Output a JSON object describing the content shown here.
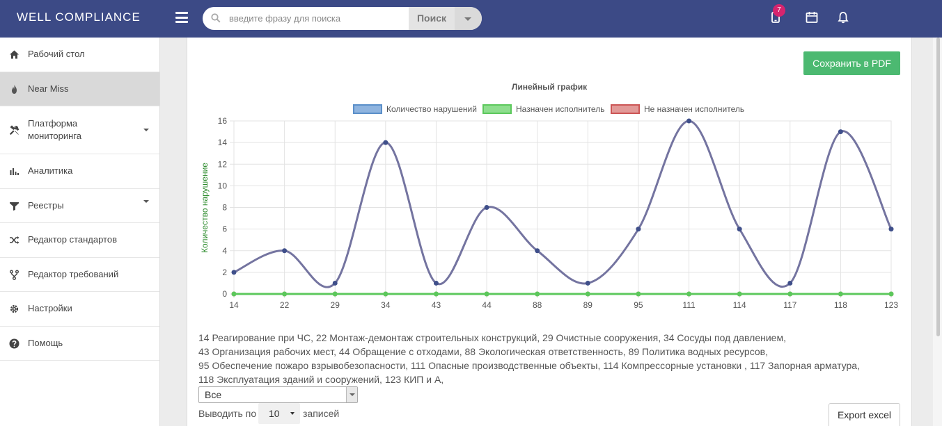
{
  "header": {
    "brand": "WELL COMPLIANCE",
    "search_placeholder": "введите фразу для поиска",
    "search_button": "Поиск",
    "notification_count": "7",
    "colors": {
      "header_bg": "#3c4a86",
      "badge": "#d6246e"
    }
  },
  "sidebar": {
    "items": [
      {
        "label": "Рабочий стол",
        "icon": "home-icon"
      },
      {
        "label": "Near Miss",
        "icon": "flame-icon",
        "active": true
      },
      {
        "label": "Платформа мониторинга",
        "icon": "tools-icon",
        "has_caret": true
      },
      {
        "label": "Аналитика",
        "icon": "bar-chart-icon"
      },
      {
        "label": "Реестры",
        "icon": "filter-icon",
        "has_caret": true
      },
      {
        "label": "Редактор стандартов",
        "icon": "shuffle-icon"
      },
      {
        "label": "Редактор требований",
        "icon": "branch-icon"
      },
      {
        "label": "Настройки",
        "icon": "gear-icon"
      },
      {
        "label": "Помощь",
        "icon": "question-icon"
      }
    ]
  },
  "main": {
    "save_pdf": "Сохранить в PDF",
    "category_list": [
      "14 Реагирование при ЧС, 22 Монтаж-демонтаж строительных конструкций, 29 Очистные сооружения, 34 Сосуды под давлением,",
      "43 Организация рабочих мест, 44 Обращение с отходами, 88 Экологическая ответственность, 89 Политика водных ресурсов,",
      "95 Обеспечение пожаро взрывобезопасности, 111 Опасные производственные объекты, 114 Компрессорные установки , 117 Запорная арматура,",
      "118 Эксплуатация зданий и сооружений, 123 КИП и А,"
    ],
    "filter_select": "Все",
    "show_label": "Выводить по",
    "page_size": "10",
    "records_label": "записей",
    "export_button": "Export excel"
  },
  "chart_data": {
    "type": "line",
    "title": "Линейный график",
    "ylabel": "Количество нарушение",
    "xlabel": "",
    "categories": [
      "14",
      "22",
      "29",
      "34",
      "43",
      "44",
      "88",
      "89",
      "95",
      "111",
      "114",
      "117",
      "118",
      "123"
    ],
    "ylim": [
      0,
      16
    ],
    "yticks": [
      0,
      2,
      4,
      6,
      8,
      10,
      12,
      14,
      16
    ],
    "grid": true,
    "legend_position": "top",
    "series": [
      {
        "name": "Количество нарушений",
        "values": [
          2,
          4,
          1,
          14,
          1,
          8,
          4,
          1,
          6,
          16,
          6,
          1,
          15,
          6
        ],
        "color": "#7474a0",
        "legend_fill": "#8fb4df",
        "legend_stroke": "#5b8fc9"
      },
      {
        "name": "Назначен исполнитель",
        "values": [
          0,
          0,
          0,
          0,
          0,
          0,
          0,
          0,
          0,
          0,
          0,
          0,
          0,
          0
        ],
        "color": "#5cc85c",
        "legend_fill": "#8ede8e",
        "legend_stroke": "#5cc85c"
      },
      {
        "name": "Не назначен исполнитель",
        "values": [
          0,
          0,
          0,
          0,
          0,
          0,
          0,
          0,
          0,
          0,
          0,
          0,
          0,
          0
        ],
        "color": "#d9706e",
        "legend_fill": "#e29a98",
        "legend_stroke": "#cc5555"
      }
    ]
  }
}
